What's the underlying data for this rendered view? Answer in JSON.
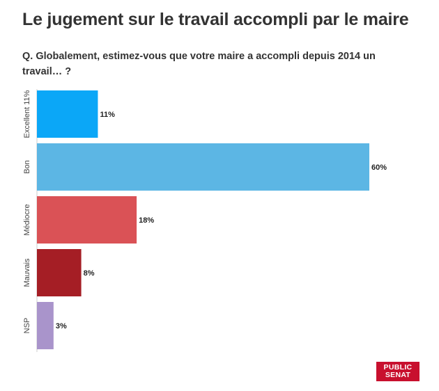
{
  "chart_data": {
    "type": "bar",
    "orientation": "horizontal",
    "title": "Le jugement sur le travail accompli par le maire",
    "subtitle": "Q. Globalement, estimez-vous que votre maire a accompli depuis 2014 un travail… ?",
    "category_labels": [
      "Excellent 11%",
      "Bon",
      "Médiocre",
      "Mauvais",
      "NSP"
    ],
    "values": [
      11,
      60,
      18,
      8,
      3
    ],
    "value_labels": [
      "11%",
      "60%",
      "18%",
      "8%",
      "3%"
    ],
    "colors": [
      "#0ba7f7",
      "#5cb6e4",
      "#da5256",
      "#a51e25",
      "#a994cb"
    ],
    "xlim": [
      0,
      60
    ],
    "grid": false,
    "legend": "none"
  },
  "logo": {
    "line1": "PUBLIC",
    "line2": "SENAT"
  }
}
